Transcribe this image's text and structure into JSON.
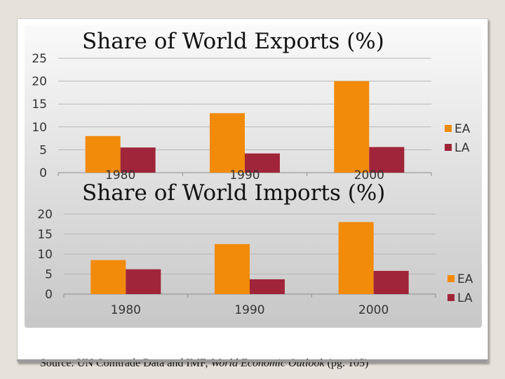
{
  "chart_data": [
    {
      "type": "bar",
      "title": "Share of World Exports (%)",
      "categories": [
        "1980",
        "1990",
        "2000"
      ],
      "series": [
        {
          "name": "EA",
          "values": [
            8,
            13,
            20
          ]
        },
        {
          "name": "LA",
          "values": [
            5.5,
            4.2,
            5.6
          ]
        }
      ],
      "ylim": [
        0,
        25
      ],
      "yticks": [
        0,
        5,
        10,
        15,
        20,
        25
      ],
      "grid": true,
      "legend": "right"
    },
    {
      "type": "bar",
      "title": "Share of World Imports (%)",
      "categories": [
        "1980",
        "1990",
        "2000"
      ],
      "series": [
        {
          "name": "EA",
          "values": [
            8.5,
            12.5,
            18
          ]
        },
        {
          "name": "LA",
          "values": [
            6.2,
            3.7,
            5.8
          ]
        }
      ],
      "ylim": [
        0,
        20
      ],
      "yticks": [
        0,
        5,
        10,
        15,
        20
      ],
      "grid": true,
      "legend": "right"
    }
  ],
  "colors": {
    "EA": "#f28a0a",
    "LA": "#a1253a"
  },
  "source": {
    "prefix": "Source: UN Comtrade Data and IMF, ",
    "publication": "World Economic Outlook",
    "suffix": "  (pg. 105)"
  }
}
